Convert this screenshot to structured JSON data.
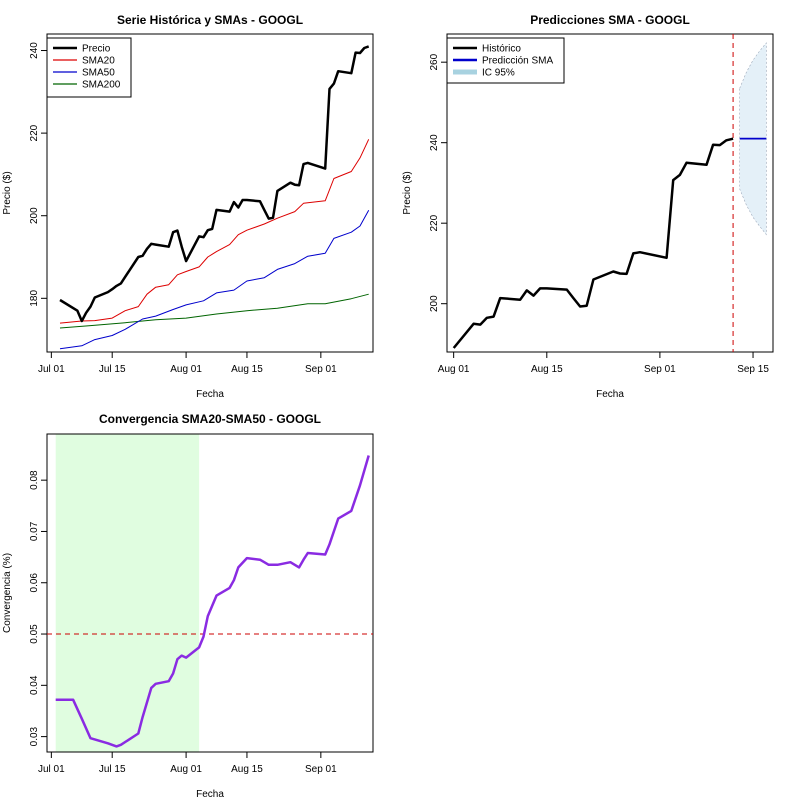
{
  "chart_data": [
    {
      "type": "line",
      "title": "Serie Histórica y SMAs - GOOGL",
      "xlabel": "Fecha",
      "ylabel": "Precio ($)",
      "x_type": "date",
      "xlim": [
        "2025-06-30",
        "2025-09-13"
      ],
      "ylim": [
        167,
        244
      ],
      "x_ticks": [
        {
          "value": "2025-07-01",
          "label": "Jul 01"
        },
        {
          "value": "2025-07-15",
          "label": "Jul 15"
        },
        {
          "value": "2025-08-01",
          "label": "Aug 01"
        },
        {
          "value": "2025-08-15",
          "label": "Aug 15"
        },
        {
          "value": "2025-09-01",
          "label": "Sep 01"
        }
      ],
      "y_ticks": [
        180,
        200,
        220,
        240
      ],
      "legend_position": "top-left",
      "series": [
        {
          "name": "Precio",
          "color": "#000000",
          "width": 2.5,
          "points": [
            [
              "2025-07-03",
              179.6
            ],
            [
              "2025-07-07",
              177.0
            ],
            [
              "2025-07-08",
              174.5
            ],
            [
              "2025-07-09",
              176.5
            ],
            [
              "2025-07-10",
              178.0
            ],
            [
              "2025-07-11",
              180.2
            ],
            [
              "2025-07-14",
              181.5
            ],
            [
              "2025-07-15",
              182.2
            ],
            [
              "2025-07-16",
              183.0
            ],
            [
              "2025-07-17",
              183.6
            ],
            [
              "2025-07-18",
              185.2
            ],
            [
              "2025-07-21",
              190.0
            ],
            [
              "2025-07-22",
              190.3
            ],
            [
              "2025-07-23",
              192.0
            ],
            [
              "2025-07-24",
              193.2
            ],
            [
              "2025-07-25",
              193.0
            ],
            [
              "2025-07-28",
              192.5
            ],
            [
              "2025-07-29",
              196.0
            ],
            [
              "2025-07-30",
              196.4
            ],
            [
              "2025-07-31",
              192.5
            ],
            [
              "2025-08-01",
              189.0
            ],
            [
              "2025-08-04",
              195.0
            ],
            [
              "2025-08-05",
              194.8
            ],
            [
              "2025-08-06",
              196.5
            ],
            [
              "2025-08-07",
              196.8
            ],
            [
              "2025-08-08",
              201.4
            ],
            [
              "2025-08-11",
              201.0
            ],
            [
              "2025-08-12",
              203.3
            ],
            [
              "2025-08-13",
              202.0
            ],
            [
              "2025-08-14",
              203.8
            ],
            [
              "2025-08-15",
              203.8
            ],
            [
              "2025-08-18",
              203.5
            ],
            [
              "2025-08-19",
              201.4
            ],
            [
              "2025-08-20",
              199.3
            ],
            [
              "2025-08-21",
              199.5
            ],
            [
              "2025-08-22",
              206.0
            ],
            [
              "2025-08-25",
              208.0
            ],
            [
              "2025-08-26",
              207.5
            ],
            [
              "2025-08-27",
              207.4
            ],
            [
              "2025-08-28",
              212.5
            ],
            [
              "2025-08-29",
              212.8
            ],
            [
              "2025-09-02",
              211.4
            ],
            [
              "2025-09-03",
              230.7
            ],
            [
              "2025-09-04",
              232.0
            ],
            [
              "2025-09-05",
              235.0
            ],
            [
              "2025-09-08",
              234.5
            ],
            [
              "2025-09-09",
              239.5
            ],
            [
              "2025-09-10",
              239.4
            ],
            [
              "2025-09-11",
              240.6
            ],
            [
              "2025-09-12",
              241.0
            ]
          ]
        },
        {
          "name": "SMA20",
          "color": "#dd0000",
          "width": 1,
          "points": [
            [
              "2025-07-03",
              174.0
            ],
            [
              "2025-07-08",
              174.5
            ],
            [
              "2025-07-11",
              174.6
            ],
            [
              "2025-07-15",
              175.2
            ],
            [
              "2025-07-18",
              177.0
            ],
            [
              "2025-07-21",
              178.0
            ],
            [
              "2025-07-23",
              181.0
            ],
            [
              "2025-07-25",
              182.7
            ],
            [
              "2025-07-28",
              183.3
            ],
            [
              "2025-07-30",
              185.7
            ],
            [
              "2025-08-01",
              186.5
            ],
            [
              "2025-08-04",
              187.6
            ],
            [
              "2025-08-06",
              190.0
            ],
            [
              "2025-08-08",
              191.3
            ],
            [
              "2025-08-11",
              193.0
            ],
            [
              "2025-08-13",
              195.4
            ],
            [
              "2025-08-15",
              196.5
            ],
            [
              "2025-08-19",
              198.0
            ],
            [
              "2025-08-22",
              199.4
            ],
            [
              "2025-08-26",
              201.0
            ],
            [
              "2025-08-28",
              203.0
            ],
            [
              "2025-09-02",
              203.6
            ],
            [
              "2025-09-04",
              209.0
            ],
            [
              "2025-09-08",
              210.7
            ],
            [
              "2025-09-10",
              214.0
            ],
            [
              "2025-09-12",
              218.5
            ]
          ]
        },
        {
          "name": "SMA50",
          "color": "#0000cc",
          "width": 1,
          "points": [
            [
              "2025-07-03",
              167.8
            ],
            [
              "2025-07-08",
              168.5
            ],
            [
              "2025-07-11",
              170.0
            ],
            [
              "2025-07-15",
              171.0
            ],
            [
              "2025-07-18",
              172.5
            ],
            [
              "2025-07-22",
              175.0
            ],
            [
              "2025-07-25",
              175.7
            ],
            [
              "2025-07-29",
              177.3
            ],
            [
              "2025-08-01",
              178.4
            ],
            [
              "2025-08-05",
              179.4
            ],
            [
              "2025-08-08",
              181.3
            ],
            [
              "2025-08-12",
              182.0
            ],
            [
              "2025-08-15",
              184.2
            ],
            [
              "2025-08-19",
              185.0
            ],
            [
              "2025-08-22",
              187.0
            ],
            [
              "2025-08-26",
              188.4
            ],
            [
              "2025-08-29",
              190.2
            ],
            [
              "2025-09-02",
              190.9
            ],
            [
              "2025-09-04",
              194.5
            ],
            [
              "2025-09-08",
              196.0
            ],
            [
              "2025-09-10",
              197.5
            ],
            [
              "2025-09-12",
              201.3
            ]
          ]
        },
        {
          "name": "SMA200",
          "color": "#006400",
          "width": 1,
          "points": [
            [
              "2025-07-03",
              172.8
            ],
            [
              "2025-07-10",
              173.4
            ],
            [
              "2025-07-18",
              174.1
            ],
            [
              "2025-07-25",
              174.8
            ],
            [
              "2025-08-01",
              175.2
            ],
            [
              "2025-08-08",
              176.2
            ],
            [
              "2025-08-15",
              177.0
            ],
            [
              "2025-08-22",
              177.6
            ],
            [
              "2025-08-29",
              178.7
            ],
            [
              "2025-09-02",
              178.7
            ],
            [
              "2025-09-08",
              179.9
            ],
            [
              "2025-09-12",
              181.0
            ]
          ]
        }
      ]
    },
    {
      "type": "line",
      "title": "Predicciones SMA - GOOGL",
      "xlabel": "Fecha",
      "ylabel": "Precio ($)",
      "x_type": "date",
      "xlim": [
        "2025-07-31",
        "2025-09-18"
      ],
      "ylim": [
        188,
        267
      ],
      "x_ticks": [
        {
          "value": "2025-08-01",
          "label": "Aug 01"
        },
        {
          "value": "2025-08-15",
          "label": "Aug 15"
        },
        {
          "value": "2025-09-01",
          "label": "Sep 01"
        },
        {
          "value": "2025-09-15",
          "label": "Sep 15"
        }
      ],
      "y_ticks": [
        200,
        220,
        240,
        260
      ],
      "legend_position": "top-left",
      "legend": [
        {
          "label": "Histórico",
          "color": "#000000",
          "kind": "line"
        },
        {
          "label": "Predicción SMA",
          "color": "#0000cc",
          "kind": "line"
        },
        {
          "label": "IC 95%",
          "color": "#a8d2e0",
          "kind": "band"
        }
      ],
      "historical": [
        [
          "2025-08-01",
          189.0
        ],
        [
          "2025-08-04",
          195.0
        ],
        [
          "2025-08-05",
          194.8
        ],
        [
          "2025-08-06",
          196.5
        ],
        [
          "2025-08-07",
          196.8
        ],
        [
          "2025-08-08",
          201.4
        ],
        [
          "2025-08-11",
          201.0
        ],
        [
          "2025-08-12",
          203.3
        ],
        [
          "2025-08-13",
          202.0
        ],
        [
          "2025-08-14",
          203.8
        ],
        [
          "2025-08-15",
          203.8
        ],
        [
          "2025-08-18",
          203.5
        ],
        [
          "2025-08-19",
          201.4
        ],
        [
          "2025-08-20",
          199.3
        ],
        [
          "2025-08-21",
          199.5
        ],
        [
          "2025-08-22",
          206.0
        ],
        [
          "2025-08-25",
          208.0
        ],
        [
          "2025-08-26",
          207.5
        ],
        [
          "2025-08-27",
          207.4
        ],
        [
          "2025-08-28",
          212.5
        ],
        [
          "2025-08-29",
          212.8
        ],
        [
          "2025-09-02",
          211.4
        ],
        [
          "2025-09-03",
          230.7
        ],
        [
          "2025-09-04",
          232.0
        ],
        [
          "2025-09-05",
          235.0
        ],
        [
          "2025-09-08",
          234.5
        ],
        [
          "2025-09-09",
          239.5
        ],
        [
          "2025-09-10",
          239.4
        ],
        [
          "2025-09-11",
          240.6
        ],
        [
          "2025-09-12",
          241.0
        ]
      ],
      "prediction": {
        "start": "2025-09-13",
        "end": "2025-09-17",
        "value": 241.0,
        "color": "#0000cc"
      },
      "confidence_band": {
        "color": "#e4f0f8",
        "points": [
          [
            "2025-09-13",
            253.5,
            228.5
          ],
          [
            "2025-09-14",
            257.5,
            224.5
          ],
          [
            "2025-09-15",
            260.5,
            221.5
          ],
          [
            "2025-09-16",
            262.8,
            219.2
          ],
          [
            "2025-09-17",
            264.8,
            217.2
          ]
        ]
      },
      "vline": {
        "date": "2025-09-12",
        "color": "#cc0000",
        "style": "dashed"
      }
    },
    {
      "type": "line",
      "title": "Convergencia SMA20-SMA50 - GOOGL",
      "xlabel": "Fecha",
      "ylabel": "Convergencia (%)",
      "x_type": "date",
      "xlim": [
        "2025-06-30",
        "2025-09-13"
      ],
      "ylim": [
        0.027,
        0.089
      ],
      "x_ticks": [
        {
          "value": "2025-07-01",
          "label": "Jul 01"
        },
        {
          "value": "2025-07-15",
          "label": "Jul 15"
        },
        {
          "value": "2025-08-01",
          "label": "Aug 01"
        },
        {
          "value": "2025-08-15",
          "label": "Aug 15"
        },
        {
          "value": "2025-09-01",
          "label": "Sep 01"
        }
      ],
      "y_ticks": [
        0.03,
        0.04,
        0.05,
        0.06,
        0.07,
        0.08
      ],
      "shaded_region": {
        "start": "2025-07-02",
        "end": "2025-08-04",
        "color": "#e0fde0"
      },
      "hline": {
        "value": 0.05,
        "color": "#cc0000",
        "style": "dashed"
      },
      "series": [
        {
          "color": "#8a2be2",
          "width": 2.5,
          "points": [
            [
              "2025-07-02",
              0.0372
            ],
            [
              "2025-07-06",
              0.0372
            ],
            [
              "2025-07-08",
              0.0335
            ],
            [
              "2025-07-10",
              0.0297
            ],
            [
              "2025-07-14",
              0.0287
            ],
            [
              "2025-07-16",
              0.0281
            ],
            [
              "2025-07-17",
              0.0284
            ],
            [
              "2025-07-21",
              0.0306
            ],
            [
              "2025-07-22",
              0.0338
            ],
            [
              "2025-07-24",
              0.0395
            ],
            [
              "2025-07-25",
              0.0403
            ],
            [
              "2025-07-28",
              0.0408
            ],
            [
              "2025-07-29",
              0.0423
            ],
            [
              "2025-07-30",
              0.0451
            ],
            [
              "2025-07-31",
              0.0458
            ],
            [
              "2025-08-01",
              0.0454
            ],
            [
              "2025-08-04",
              0.0474
            ],
            [
              "2025-08-05",
              0.0495
            ],
            [
              "2025-08-06",
              0.0535
            ],
            [
              "2025-08-07",
              0.0555
            ],
            [
              "2025-08-08",
              0.0575
            ],
            [
              "2025-08-11",
              0.059
            ],
            [
              "2025-08-12",
              0.0605
            ],
            [
              "2025-08-13",
              0.063
            ],
            [
              "2025-08-15",
              0.0648
            ],
            [
              "2025-08-18",
              0.0645
            ],
            [
              "2025-08-19",
              0.064
            ],
            [
              "2025-08-20",
              0.0635
            ],
            [
              "2025-08-22",
              0.0635
            ],
            [
              "2025-08-25",
              0.064
            ],
            [
              "2025-08-27",
              0.063
            ],
            [
              "2025-08-28",
              0.0645
            ],
            [
              "2025-08-29",
              0.0658
            ],
            [
              "2025-09-02",
              0.0655
            ],
            [
              "2025-09-03",
              0.0675
            ],
            [
              "2025-09-05",
              0.0725
            ],
            [
              "2025-09-08",
              0.074
            ],
            [
              "2025-09-10",
              0.079
            ],
            [
              "2025-09-12",
              0.0848
            ]
          ]
        }
      ]
    }
  ]
}
